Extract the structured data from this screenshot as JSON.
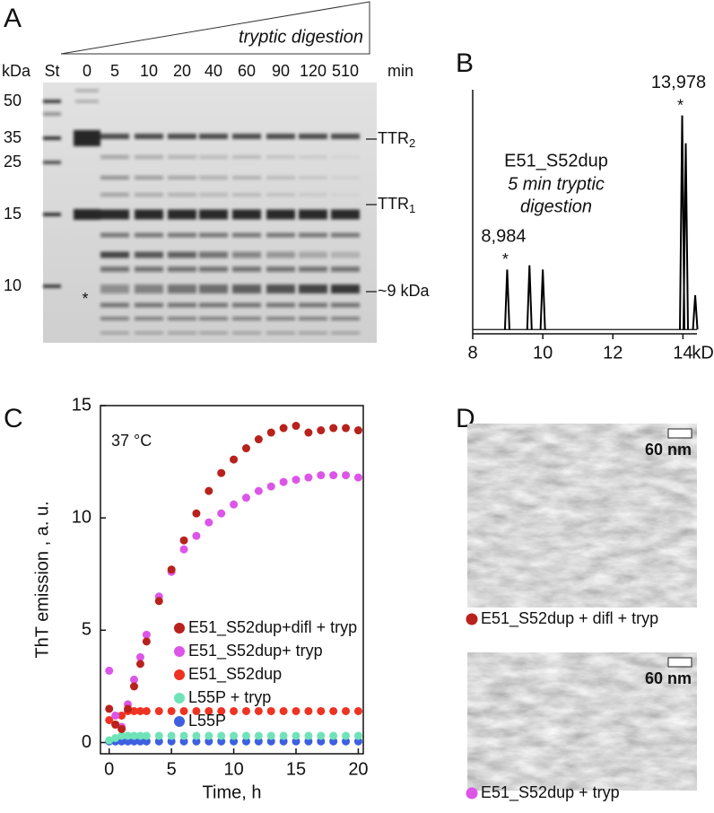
{
  "panel_labels": [
    "A",
    "B",
    "C",
    "D"
  ],
  "gel": {
    "units": "kDa",
    "standard": "St",
    "lanes": [
      0,
      5,
      10,
      20,
      40,
      60,
      90,
      120,
      510
    ],
    "time_unit": "min",
    "gradient_label": "tryptic digestion",
    "markers": [
      50,
      35,
      25,
      15,
      10
    ],
    "bands": [
      {
        "label": "TTR",
        "sub": "2"
      },
      {
        "label": "TTR",
        "sub": "1"
      },
      {
        "label": "~9 kDa"
      }
    ],
    "asterisk": "*",
    "asterisk_color": "#a64ad8"
  },
  "chart_data": [
    {
      "type": "spectrum",
      "title": "E51_S52dup",
      "subtitle": [
        "5 min tryptic",
        "digestion"
      ],
      "x_label": "kDa",
      "x": [
        8.984,
        9.62,
        10.0,
        13.978,
        14.08,
        14.35
      ],
      "values": [
        0.28,
        0.3,
        0.28,
        1.0,
        0.87,
        0.16
      ],
      "color": "#000000",
      "xlim": [
        8,
        14.4
      ],
      "xticks": [
        8,
        10,
        12,
        14
      ],
      "ylim": [
        -0.02,
        1.12
      ],
      "annotations": [
        {
          "x": 8.984,
          "label": "8,984",
          "marker": "*",
          "color": "#a64ad8"
        },
        {
          "x": 13.978,
          "label": "13,978",
          "marker": "*",
          "color": "#e8321e"
        }
      ]
    },
    {
      "type": "scatter",
      "annotation": "37 °C",
      "x_label": "Time, h",
      "y_label": "ThT emission , a. u.",
      "x": [
        0,
        0.5,
        1,
        1.5,
        2,
        2.5,
        3,
        4,
        5,
        6,
        7,
        8,
        9,
        10,
        11,
        12,
        13,
        14,
        15,
        16,
        17,
        18,
        19,
        20
      ],
      "xlim": [
        -0.7,
        20.4
      ],
      "xticks": [
        0,
        5,
        10,
        15,
        20
      ],
      "ylim": [
        -0.5,
        15
      ],
      "yticks": [
        0,
        5,
        10,
        15
      ],
      "grid": false,
      "series": [
        {
          "name": "E51_S52dup+difl + tryp",
          "color": "#b8221c",
          "values": [
            1.5,
            0.8,
            0.6,
            1.5,
            2.5,
            3.5,
            4.5,
            6.3,
            7.7,
            9.0,
            10.2,
            11.2,
            12.0,
            12.6,
            13.1,
            13.5,
            13.8,
            14.0,
            14.1,
            13.8,
            13.9,
            14.0,
            14.0,
            13.9
          ]
        },
        {
          "name": "E51_S52dup+ tryp",
          "color": "#dd55e8",
          "values": [
            3.2,
            1.2,
            0.7,
            1.7,
            2.8,
            3.8,
            4.8,
            6.5,
            7.6,
            8.6,
            9.2,
            9.8,
            10.2,
            10.6,
            10.9,
            11.2,
            11.4,
            11.6,
            11.7,
            11.8,
            11.9,
            11.9,
            11.9,
            11.8
          ]
        },
        {
          "name": "E51_S52dup",
          "color": "#ee3322",
          "values": [
            1.0,
            0.8,
            1.2,
            1.4,
            1.4,
            1.4,
            1.4,
            1.4,
            1.4,
            1.4,
            1.4,
            1.4,
            1.4,
            1.4,
            1.4,
            1.4,
            1.4,
            1.4,
            1.4,
            1.4,
            1.4,
            1.4,
            1.4,
            1.4
          ]
        },
        {
          "name": "L55P + tryp",
          "color": "#6fe3b8",
          "values": [
            0.1,
            0.2,
            0.3,
            0.3,
            0.3,
            0.3,
            0.3,
            0.3,
            0.3,
            0.3,
            0.3,
            0.3,
            0.3,
            0.3,
            0.3,
            0.3,
            0.3,
            0.3,
            0.3,
            0.3,
            0.3,
            0.3,
            0.3,
            0.3
          ]
        },
        {
          "name": "L55P",
          "color": "#3d5fe0",
          "values": [
            0.05,
            0.05,
            0.05,
            0.05,
            0.05,
            0.05,
            0.05,
            0.05,
            0.05,
            0.05,
            0.05,
            0.05,
            0.05,
            0.05,
            0.05,
            0.05,
            0.05,
            0.05,
            0.05,
            0.05,
            0.05,
            0.05,
            0.05,
            0.05
          ]
        }
      ]
    }
  ],
  "micrographs": [
    {
      "scale_bar": "60 nm",
      "caption": "E51_S52dup + difl + tryp",
      "color": "#b8221c"
    },
    {
      "scale_bar": "60 nm",
      "caption": "E51_S52dup + tryp",
      "color": "#dd55e8"
    }
  ]
}
